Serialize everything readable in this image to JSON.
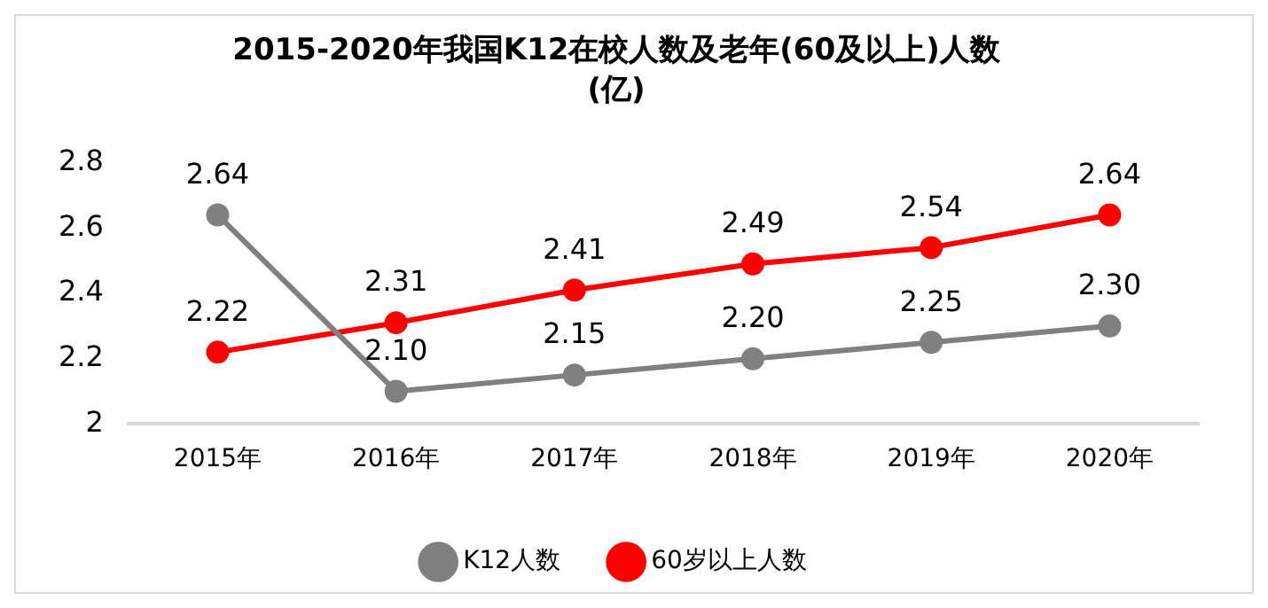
{
  "chart_data": {
    "type": "line",
    "title": "2015-2020年我国K12在校人数及老年(60及以上)人数",
    "subtitle": "(亿)",
    "categories": [
      "2015年",
      "2016年",
      "2017年",
      "2018年",
      "2019年",
      "2020年"
    ],
    "series": [
      {
        "name": "K12人数",
        "color": "#808080",
        "values": [
          2.64,
          2.1,
          2.15,
          2.2,
          2.25,
          2.3
        ],
        "value_labels": [
          "2.64",
          "2.10",
          "2.15",
          "2.20",
          "2.25",
          "2.30"
        ]
      },
      {
        "name": "60岁以上人数",
        "color": "#ff0000",
        "values": [
          2.22,
          2.31,
          2.41,
          2.49,
          2.54,
          2.64
        ],
        "value_labels": [
          "2.22",
          "2.31",
          "2.41",
          "2.49",
          "2.54",
          "2.64"
        ]
      }
    ],
    "ylim": [
      2,
      2.8
    ],
    "yticks": [
      2,
      2.2,
      2.4,
      2.6,
      2.8
    ],
    "grid": false,
    "legend": "bottom",
    "marker": "circle",
    "line_style": "solid"
  }
}
